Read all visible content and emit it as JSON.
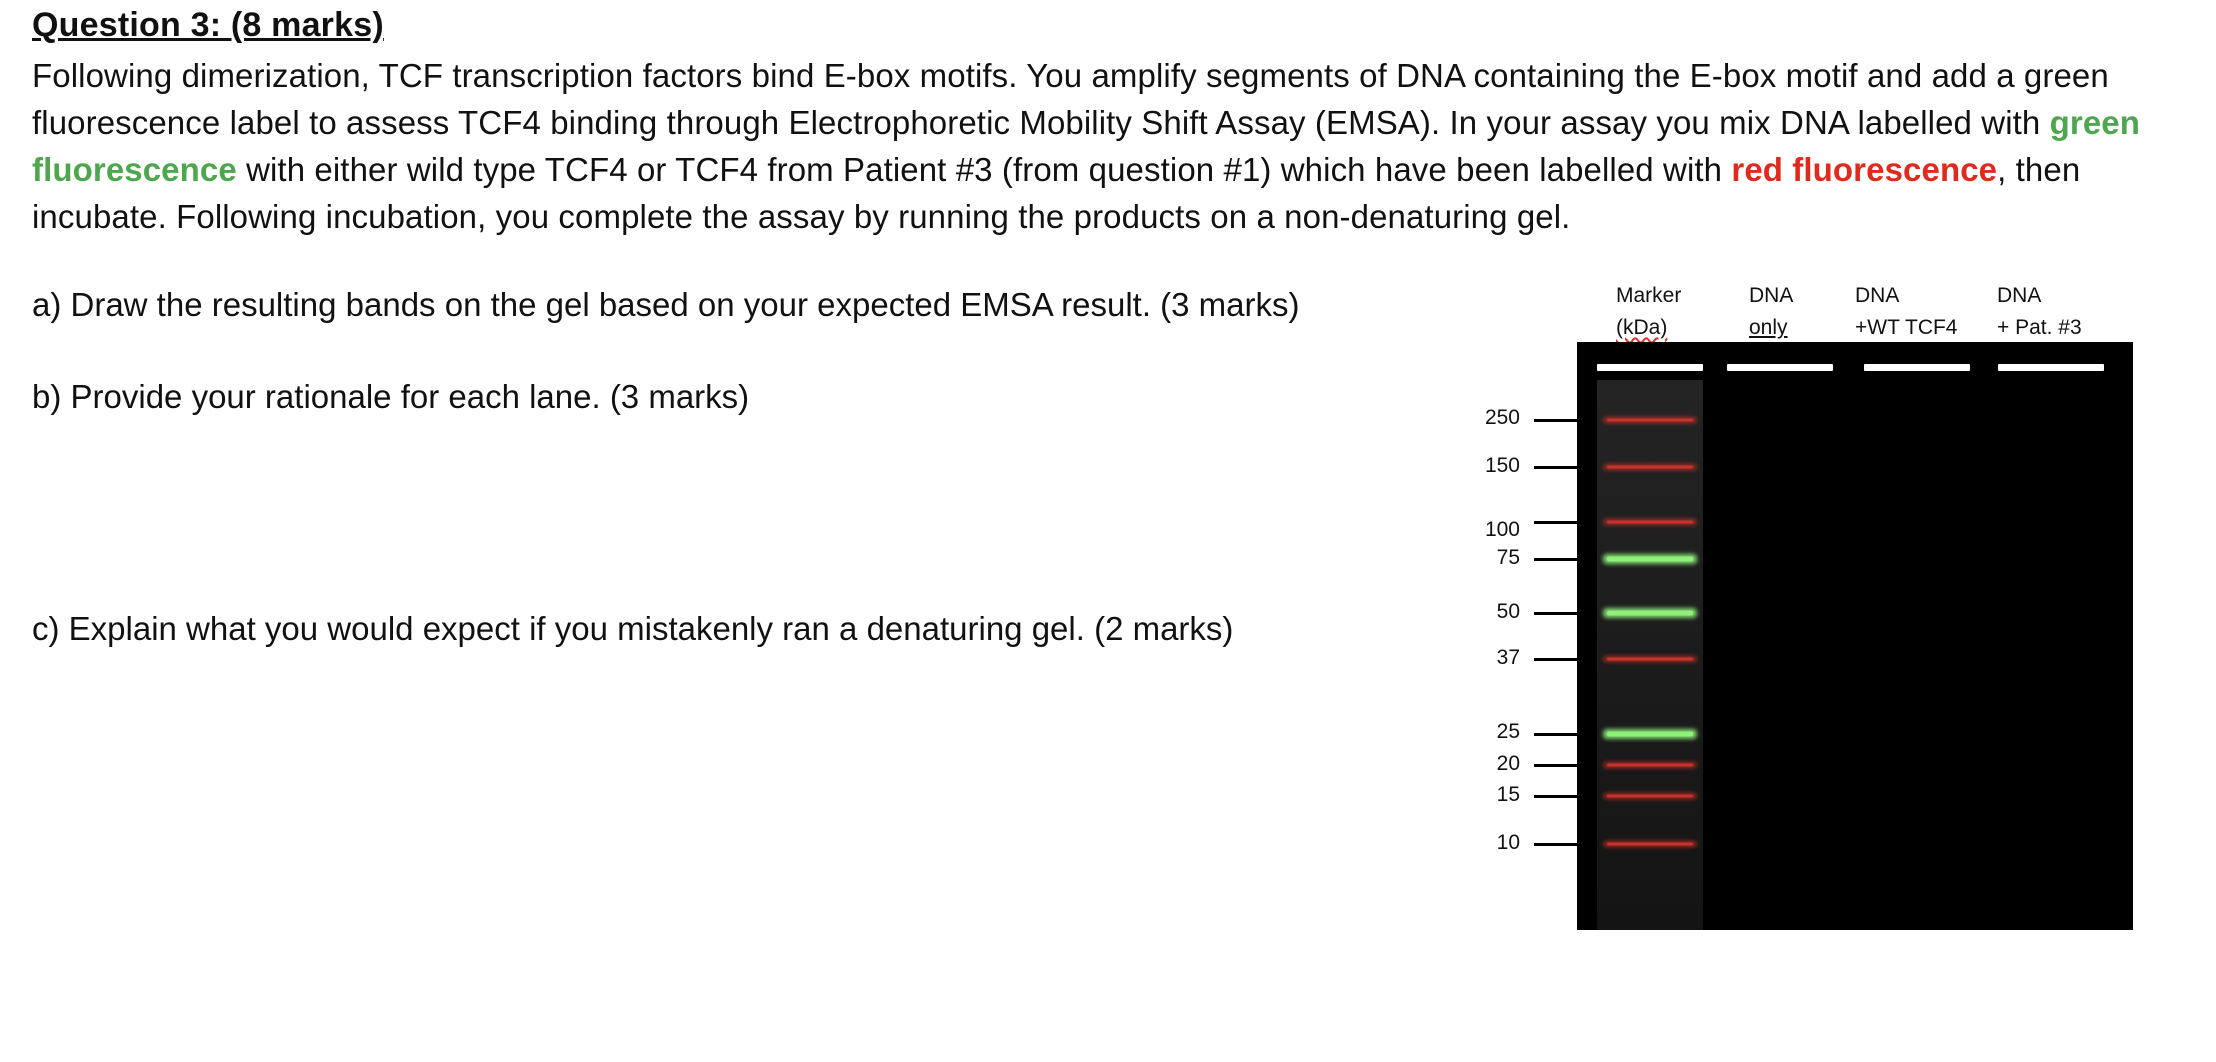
{
  "question": {
    "title": "Question 3:  (8 marks)",
    "intro_part1": "Following dimerization, TCF transcription factors bind E-box motifs. You amplify segments of DNA containing the E-box motif and add a green fluorescence label to assess TCF4 binding through Electrophoretic Mobility Shift Assay (EMSA). In your assay you mix DNA labelled with ",
    "green_text": "green fluorescence",
    "intro_part2": " with either wild type TCF4 or TCF4 from Patient #3 (from question #1) which have been labelled with ",
    "red_text": "red fluorescence",
    "intro_part3": ", then incubate. Following incubation, you complete the assay by running the products on a non-denaturing gel.",
    "part_a": "a) Draw the resulting bands on the gel based on your expected EMSA result. (3 marks)",
    "part_b": "b) Provide your rationale for each lane. (3 marks)",
    "part_c": "c) Explain what you would expect if you mistakenly ran a denaturing gel. (2 marks)"
  },
  "gel": {
    "lanes": [
      {
        "line1": "Marker",
        "line2": "(kDa)"
      },
      {
        "line1": "DNA",
        "line2": "only"
      },
      {
        "line1": "DNA",
        "line2": "+WT TCF4"
      },
      {
        "line1": "DNA",
        "line2": "+ Pat. #3"
      }
    ],
    "mw_labels": [
      "250",
      "150",
      "100",
      "75",
      "50",
      "37",
      "25",
      "20",
      "15",
      "10"
    ],
    "marker_band_colors": [
      "red",
      "red",
      "red",
      "green",
      "green",
      "red",
      "green",
      "red",
      "red",
      "red"
    ],
    "colors": {
      "red_band": "#c8322a",
      "green_band": "#8ff07a",
      "gel_background": "#000000"
    }
  }
}
